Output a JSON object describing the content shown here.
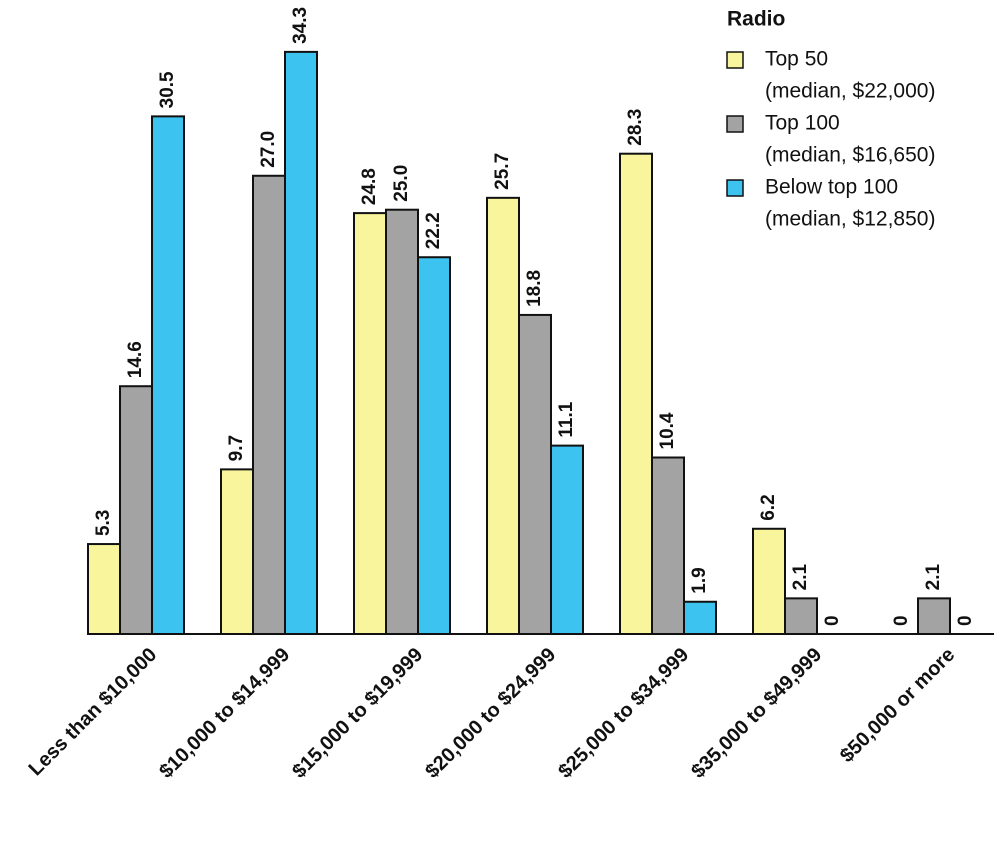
{
  "chart_data": {
    "type": "bar",
    "legend_title": "Radio",
    "categories": [
      "Less than $10,000",
      "$10,000 to $14,999",
      "$15,000 to $19,999",
      "$20,000 to $24,999",
      "$25,000 to $34,999",
      "$35,000 to $49,999",
      "$50,000 or more"
    ],
    "series": [
      {
        "name": "Top 50",
        "median_label": "(median, $22,000)",
        "color": "#f8f59c",
        "values": [
          5.3,
          9.7,
          24.8,
          25.7,
          28.3,
          6.2,
          0
        ],
        "value_labels": [
          "5.3",
          "9.7",
          "24.8",
          "25.7",
          "28.3",
          "6.2",
          "0"
        ]
      },
      {
        "name": "Top 100",
        "median_label": "(median, $16,650)",
        "color": "#a3a3a3",
        "values": [
          14.6,
          27.0,
          25.0,
          18.8,
          10.4,
          2.1,
          2.1
        ],
        "value_labels": [
          "14.6",
          "27.0",
          "25.0",
          "18.8",
          "10.4",
          "2.1",
          "2.1"
        ]
      },
      {
        "name": "Below top 100",
        "median_label": "(median, $12,850)",
        "color": "#3cc3ef",
        "values": [
          30.5,
          34.3,
          22.2,
          11.1,
          1.9,
          0,
          0
        ],
        "value_labels": [
          "30.5",
          "34.3",
          "22.2",
          "11.1",
          "1.9",
          "0",
          "0"
        ]
      }
    ],
    "ylim": [
      0,
      35
    ],
    "legend": "upper right"
  }
}
